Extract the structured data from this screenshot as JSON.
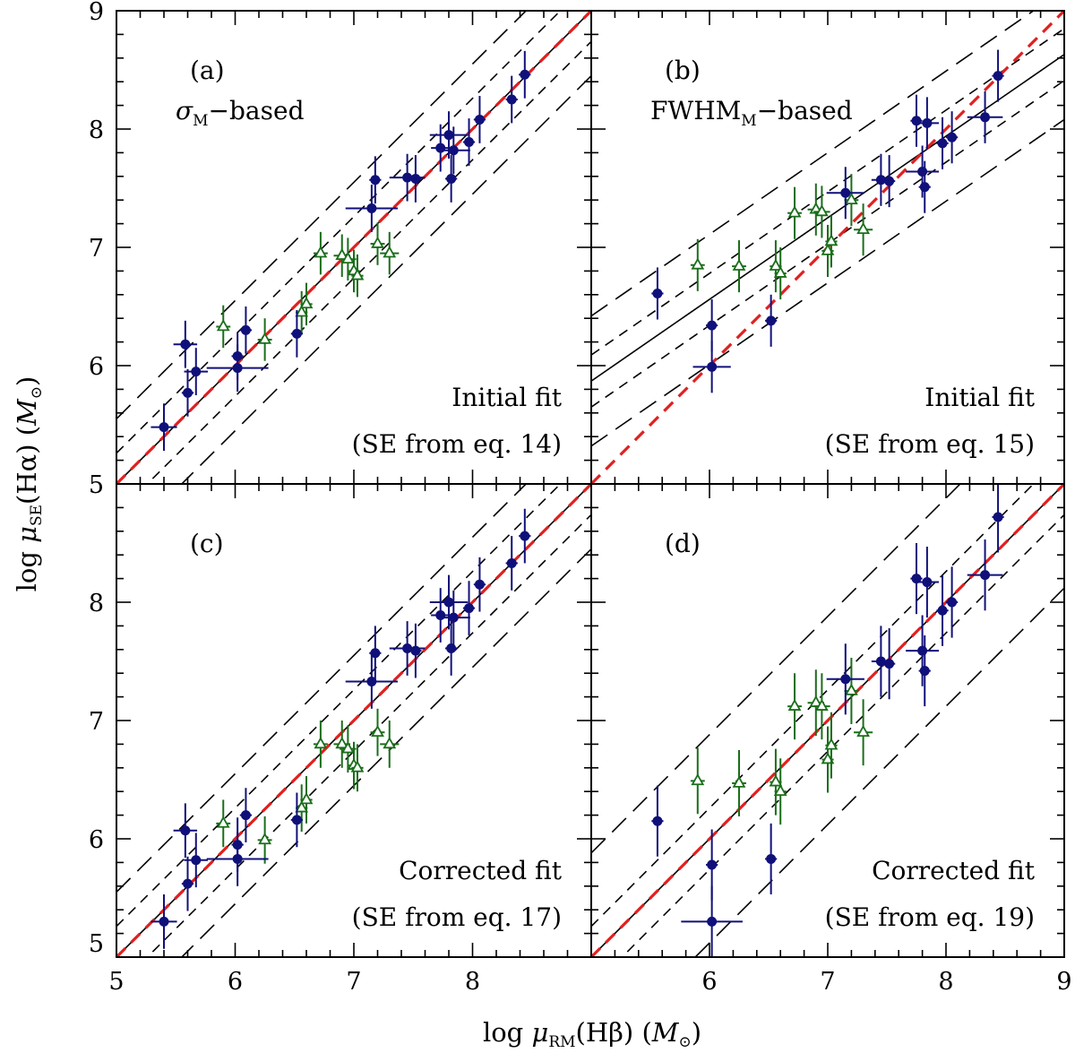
{
  "chart_data": {
    "type": "scatter",
    "xlabel": {
      "pre": "log ",
      "mu": "μ",
      "sub": "RM",
      "mid": "(Hβ) (",
      "sym": "M",
      "sym_sub": "⊙",
      "post": ")"
    },
    "ylabel": {
      "pre": "log ",
      "mu": "μ",
      "sub": "SE",
      "mid": "(Hα) (",
      "sym": "M",
      "sym_sub": "⊙",
      "post": ")"
    },
    "xlim": [
      5,
      9
    ],
    "ylim": [
      5,
      9
    ],
    "x_ticks_left": [
      "5",
      "6",
      "7",
      "8"
    ],
    "x_ticks_right": [
      "6",
      "7",
      "8",
      "9"
    ],
    "y_ticks_top": [
      "6",
      "7",
      "8",
      "9"
    ],
    "y_ticks_bottom": [
      "5",
      "6",
      "7",
      "8"
    ],
    "colors": {
      "filled": "#10107a",
      "open": "#1a6e1a",
      "identity": "#e02020",
      "fit": "#000000"
    },
    "panels": [
      {
        "id": "a",
        "label": "(a)",
        "desc_main": "σ",
        "desc_sub": "M",
        "desc_rest": "−based",
        "note1": "Initial fit",
        "note2": "(SE from eq. 14)",
        "fit": {
          "slope": 1.0,
          "intercept": 0.0,
          "inner": 0.26,
          "outer": 0.55
        },
        "filled": [
          {
            "x": 5.4,
            "y": 5.48,
            "xe": 0.11,
            "ye": 0.2
          },
          {
            "x": 5.58,
            "y": 6.18,
            "xe": 0.1,
            "ye": 0.2
          },
          {
            "x": 5.6,
            "y": 5.77,
            "xe": 0.05,
            "ye": 0.2
          },
          {
            "x": 5.67,
            "y": 5.95,
            "xe": 0.1,
            "ye": 0.2
          },
          {
            "x": 6.02,
            "y": 5.98,
            "xe": 0.26,
            "ye": 0.2
          },
          {
            "x": 6.02,
            "y": 6.08,
            "xe": 0.05,
            "ye": 0.2
          },
          {
            "x": 6.09,
            "y": 6.3,
            "xe": 0.05,
            "ye": 0.2
          },
          {
            "x": 6.52,
            "y": 6.27,
            "xe": 0.05,
            "ye": 0.2
          },
          {
            "x": 7.15,
            "y": 7.33,
            "xe": 0.22,
            "ye": 0.2
          },
          {
            "x": 7.18,
            "y": 7.57,
            "xe": 0.05,
            "ye": 0.2
          },
          {
            "x": 7.45,
            "y": 7.59,
            "xe": 0.15,
            "ye": 0.2
          },
          {
            "x": 7.52,
            "y": 7.58,
            "xe": 0.05,
            "ye": 0.2
          },
          {
            "x": 7.73,
            "y": 7.84,
            "xe": 0.08,
            "ye": 0.2
          },
          {
            "x": 7.8,
            "y": 7.95,
            "xe": 0.16,
            "ye": 0.2
          },
          {
            "x": 7.82,
            "y": 7.58,
            "xe": 0.05,
            "ye": 0.2
          },
          {
            "x": 7.84,
            "y": 7.82,
            "xe": 0.14,
            "ye": 0.2
          },
          {
            "x": 7.97,
            "y": 7.89,
            "xe": 0.05,
            "ye": 0.2
          },
          {
            "x": 8.06,
            "y": 8.08,
            "xe": 0.05,
            "ye": 0.2
          },
          {
            "x": 8.33,
            "y": 8.25,
            "xe": 0.05,
            "ye": 0.2
          },
          {
            "x": 8.44,
            "y": 8.46,
            "xe": 0.05,
            "ye": 0.2
          }
        ],
        "open": [
          {
            "x": 5.9,
            "y": 6.33,
            "xe": 0.06,
            "ye": 0.18
          },
          {
            "x": 6.25,
            "y": 6.22,
            "xe": 0.06,
            "ye": 0.18
          },
          {
            "x": 6.56,
            "y": 6.45,
            "xe": 0.05,
            "ye": 0.18
          },
          {
            "x": 6.6,
            "y": 6.52,
            "xe": 0.05,
            "ye": 0.18
          },
          {
            "x": 6.72,
            "y": 6.95,
            "xe": 0.06,
            "ye": 0.18
          },
          {
            "x": 6.9,
            "y": 6.93,
            "xe": 0.07,
            "ye": 0.18
          },
          {
            "x": 6.95,
            "y": 6.9,
            "xe": 0.07,
            "ye": 0.18
          },
          {
            "x": 7.0,
            "y": 6.8,
            "xe": 0.05,
            "ye": 0.18
          },
          {
            "x": 7.03,
            "y": 6.76,
            "xe": 0.05,
            "ye": 0.18
          },
          {
            "x": 7.2,
            "y": 7.03,
            "xe": 0.06,
            "ye": 0.18
          },
          {
            "x": 7.3,
            "y": 6.95,
            "xe": 0.08,
            "ye": 0.18
          }
        ]
      },
      {
        "id": "b",
        "label": "(b)",
        "desc_main": "FWHM",
        "desc_sub": "M",
        "desc_rest": "−based",
        "note1": "Initial fit",
        "note2": "(SE from eq. 15)",
        "fit": {
          "slope": 0.69,
          "intercept": 2.42,
          "inner": 0.22,
          "outer": 0.55
        },
        "filled": [
          {
            "x": 5.56,
            "y": 6.61,
            "xe": 0.05,
            "ye": 0.22
          },
          {
            "x": 6.02,
            "y": 5.99,
            "xe": 0.16,
            "ye": 0.22
          },
          {
            "x": 6.02,
            "y": 6.34,
            "xe": 0.05,
            "ye": 0.22
          },
          {
            "x": 6.52,
            "y": 6.38,
            "xe": 0.05,
            "ye": 0.22
          },
          {
            "x": 7.15,
            "y": 7.46,
            "xe": 0.16,
            "ye": 0.22
          },
          {
            "x": 7.45,
            "y": 7.57,
            "xe": 0.08,
            "ye": 0.22
          },
          {
            "x": 7.52,
            "y": 7.56,
            "xe": 0.05,
            "ye": 0.22
          },
          {
            "x": 7.75,
            "y": 8.07,
            "xe": 0.05,
            "ye": 0.22
          },
          {
            "x": 7.8,
            "y": 7.64,
            "xe": 0.14,
            "ye": 0.22
          },
          {
            "x": 7.82,
            "y": 7.51,
            "xe": 0.05,
            "ye": 0.22
          },
          {
            "x": 7.84,
            "y": 8.05,
            "xe": 0.1,
            "ye": 0.22
          },
          {
            "x": 7.97,
            "y": 7.88,
            "xe": 0.05,
            "ye": 0.22
          },
          {
            "x": 8.05,
            "y": 7.93,
            "xe": 0.05,
            "ye": 0.22
          },
          {
            "x": 8.33,
            "y": 8.1,
            "xe": 0.15,
            "ye": 0.22
          },
          {
            "x": 8.44,
            "y": 8.45,
            "xe": 0.05,
            "ye": 0.22
          }
        ],
        "open": [
          {
            "x": 5.9,
            "y": 6.85,
            "xe": 0.06,
            "ye": 0.22
          },
          {
            "x": 6.25,
            "y": 6.84,
            "xe": 0.06,
            "ye": 0.22
          },
          {
            "x": 6.56,
            "y": 6.84,
            "xe": 0.05,
            "ye": 0.22
          },
          {
            "x": 6.6,
            "y": 6.78,
            "xe": 0.05,
            "ye": 0.22
          },
          {
            "x": 6.72,
            "y": 7.29,
            "xe": 0.06,
            "ye": 0.22
          },
          {
            "x": 6.9,
            "y": 7.32,
            "xe": 0.07,
            "ye": 0.22
          },
          {
            "x": 6.95,
            "y": 7.3,
            "xe": 0.07,
            "ye": 0.22
          },
          {
            "x": 7.0,
            "y": 6.97,
            "xe": 0.05,
            "ye": 0.22
          },
          {
            "x": 7.03,
            "y": 7.05,
            "xe": 0.05,
            "ye": 0.22
          },
          {
            "x": 7.2,
            "y": 7.4,
            "xe": 0.06,
            "ye": 0.22
          },
          {
            "x": 7.3,
            "y": 7.15,
            "xe": 0.08,
            "ye": 0.22
          }
        ]
      },
      {
        "id": "c",
        "label": "(c)",
        "desc_main": "",
        "desc_sub": "",
        "desc_rest": "",
        "note1": "Corrected fit",
        "note2": "(SE from eq. 17)",
        "fit": {
          "slope": 1.0,
          "intercept": 0.0,
          "inner": 0.26,
          "outer": 0.55
        },
        "filled": [
          {
            "x": 5.4,
            "y": 5.3,
            "xe": 0.11,
            "ye": 0.23
          },
          {
            "x": 5.58,
            "y": 6.07,
            "xe": 0.1,
            "ye": 0.23
          },
          {
            "x": 5.6,
            "y": 5.62,
            "xe": 0.05,
            "ye": 0.23
          },
          {
            "x": 5.67,
            "y": 5.82,
            "xe": 0.1,
            "ye": 0.23
          },
          {
            "x": 6.02,
            "y": 5.83,
            "xe": 0.26,
            "ye": 0.23
          },
          {
            "x": 6.02,
            "y": 5.95,
            "xe": 0.05,
            "ye": 0.23
          },
          {
            "x": 6.09,
            "y": 6.2,
            "xe": 0.05,
            "ye": 0.23
          },
          {
            "x": 6.52,
            "y": 6.16,
            "xe": 0.05,
            "ye": 0.23
          },
          {
            "x": 7.15,
            "y": 7.33,
            "xe": 0.22,
            "ye": 0.23
          },
          {
            "x": 7.18,
            "y": 7.57,
            "xe": 0.05,
            "ye": 0.23
          },
          {
            "x": 7.45,
            "y": 7.61,
            "xe": 0.15,
            "ye": 0.23
          },
          {
            "x": 7.52,
            "y": 7.59,
            "xe": 0.05,
            "ye": 0.23
          },
          {
            "x": 7.73,
            "y": 7.89,
            "xe": 0.08,
            "ye": 0.23
          },
          {
            "x": 7.8,
            "y": 8.0,
            "xe": 0.16,
            "ye": 0.23
          },
          {
            "x": 7.82,
            "y": 7.61,
            "xe": 0.05,
            "ye": 0.23
          },
          {
            "x": 7.84,
            "y": 7.87,
            "xe": 0.14,
            "ye": 0.23
          },
          {
            "x": 7.97,
            "y": 7.95,
            "xe": 0.05,
            "ye": 0.23
          },
          {
            "x": 8.06,
            "y": 8.15,
            "xe": 0.05,
            "ye": 0.23
          },
          {
            "x": 8.33,
            "y": 8.33,
            "xe": 0.05,
            "ye": 0.23
          },
          {
            "x": 8.44,
            "y": 8.56,
            "xe": 0.05,
            "ye": 0.23
          }
        ],
        "open": [
          {
            "x": 5.9,
            "y": 6.13,
            "xe": 0.06,
            "ye": 0.2
          },
          {
            "x": 6.25,
            "y": 5.99,
            "xe": 0.06,
            "ye": 0.2
          },
          {
            "x": 6.56,
            "y": 6.26,
            "xe": 0.05,
            "ye": 0.2
          },
          {
            "x": 6.6,
            "y": 6.33,
            "xe": 0.05,
            "ye": 0.2
          },
          {
            "x": 6.72,
            "y": 6.8,
            "xe": 0.06,
            "ye": 0.2
          },
          {
            "x": 6.9,
            "y": 6.8,
            "xe": 0.07,
            "ye": 0.2
          },
          {
            "x": 6.95,
            "y": 6.76,
            "xe": 0.07,
            "ye": 0.2
          },
          {
            "x": 7.0,
            "y": 6.62,
            "xe": 0.05,
            "ye": 0.2
          },
          {
            "x": 7.03,
            "y": 6.6,
            "xe": 0.05,
            "ye": 0.2
          },
          {
            "x": 7.2,
            "y": 6.9,
            "xe": 0.06,
            "ye": 0.2
          },
          {
            "x": 7.3,
            "y": 6.8,
            "xe": 0.08,
            "ye": 0.2
          }
        ]
      },
      {
        "id": "d",
        "label": "(d)",
        "desc_main": "",
        "desc_sub": "",
        "desc_rest": "",
        "note1": "Corrected fit",
        "note2": "(SE from eq. 19)",
        "fit": {
          "slope": 1.0,
          "intercept": 0.0,
          "inner": 0.26,
          "outer": 0.88
        },
        "filled": [
          {
            "x": 5.56,
            "y": 6.15,
            "xe": 0.05,
            "ye": 0.3
          },
          {
            "x": 6.02,
            "y": 5.3,
            "xe": 0.26,
            "ye": 0.3
          },
          {
            "x": 6.02,
            "y": 5.78,
            "xe": 0.05,
            "ye": 0.3
          },
          {
            "x": 6.52,
            "y": 5.83,
            "xe": 0.05,
            "ye": 0.3
          },
          {
            "x": 7.15,
            "y": 7.35,
            "xe": 0.16,
            "ye": 0.3
          },
          {
            "x": 7.45,
            "y": 7.5,
            "xe": 0.08,
            "ye": 0.3
          },
          {
            "x": 7.52,
            "y": 7.48,
            "xe": 0.05,
            "ye": 0.3
          },
          {
            "x": 7.75,
            "y": 8.2,
            "xe": 0.05,
            "ye": 0.3
          },
          {
            "x": 7.8,
            "y": 7.59,
            "xe": 0.14,
            "ye": 0.3
          },
          {
            "x": 7.82,
            "y": 7.42,
            "xe": 0.05,
            "ye": 0.3
          },
          {
            "x": 7.84,
            "y": 8.17,
            "xe": 0.1,
            "ye": 0.3
          },
          {
            "x": 7.97,
            "y": 7.93,
            "xe": 0.05,
            "ye": 0.3
          },
          {
            "x": 8.05,
            "y": 8.0,
            "xe": 0.05,
            "ye": 0.3
          },
          {
            "x": 8.33,
            "y": 8.23,
            "xe": 0.15,
            "ye": 0.3
          },
          {
            "x": 8.44,
            "y": 8.72,
            "xe": 0.05,
            "ye": 0.3
          }
        ],
        "open": [
          {
            "x": 5.9,
            "y": 6.49,
            "xe": 0.06,
            "ye": 0.28
          },
          {
            "x": 6.25,
            "y": 6.47,
            "xe": 0.06,
            "ye": 0.28
          },
          {
            "x": 6.56,
            "y": 6.48,
            "xe": 0.05,
            "ye": 0.28
          },
          {
            "x": 6.6,
            "y": 6.4,
            "xe": 0.05,
            "ye": 0.28
          },
          {
            "x": 6.72,
            "y": 7.12,
            "xe": 0.06,
            "ye": 0.28
          },
          {
            "x": 6.9,
            "y": 7.15,
            "xe": 0.07,
            "ye": 0.28
          },
          {
            "x": 6.95,
            "y": 7.12,
            "xe": 0.07,
            "ye": 0.28
          },
          {
            "x": 7.0,
            "y": 6.67,
            "xe": 0.05,
            "ye": 0.28
          },
          {
            "x": 7.03,
            "y": 6.79,
            "xe": 0.05,
            "ye": 0.28
          },
          {
            "x": 7.2,
            "y": 7.25,
            "xe": 0.06,
            "ye": 0.28
          },
          {
            "x": 7.3,
            "y": 6.9,
            "xe": 0.08,
            "ye": 0.28
          }
        ]
      }
    ]
  }
}
